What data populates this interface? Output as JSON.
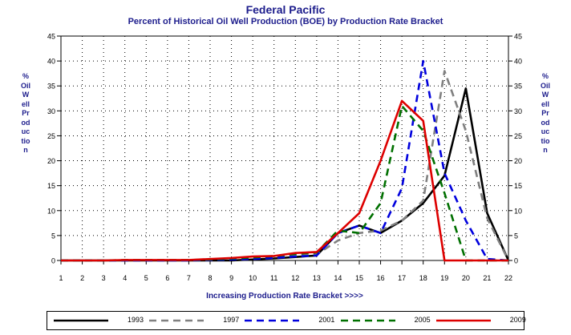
{
  "chart_data": {
    "type": "line",
    "title": "Federal Pacific",
    "subtitle": "Percent of Historical Oil Well Production (BOE) by Production Rate Bracket",
    "xlabel": "Increasing Production Rate Bracket >>>>",
    "ylabel": "% Oil Well Production",
    "x": [
      1,
      2,
      3,
      4,
      5,
      6,
      7,
      8,
      9,
      10,
      11,
      12,
      13,
      14,
      15,
      16,
      17,
      18,
      19,
      20,
      21,
      22
    ],
    "xlim": [
      1,
      22
    ],
    "ylim": [
      0,
      45
    ],
    "yticks": [
      0,
      5,
      10,
      15,
      20,
      25,
      30,
      35,
      40,
      45
    ],
    "grid": true,
    "legend_position": "bottom",
    "series": [
      {
        "name": "1993",
        "color": "#000000",
        "dash": "solid",
        "values": [
          0,
          0,
          0,
          0,
          0,
          0,
          0,
          0,
          0,
          0.2,
          0.4,
          0.7,
          1,
          5.5,
          7,
          5.5,
          8,
          11.5,
          17,
          34.5,
          9.5,
          0
        ]
      },
      {
        "name": "1997",
        "color": "#808080",
        "dash": "dashed",
        "values": [
          0,
          0,
          0,
          0,
          0,
          0,
          0,
          0.1,
          0.2,
          0.3,
          0.6,
          0.9,
          1.2,
          4,
          5.5,
          6,
          8,
          12,
          38,
          26,
          8.5,
          0
        ]
      },
      {
        "name": "2001",
        "color": "#0000dd",
        "dash": "dashed",
        "values": [
          0,
          0,
          0,
          0,
          0,
          0,
          0,
          0.1,
          0.2,
          0.3,
          0.5,
          0.8,
          1,
          5.5,
          7,
          5.5,
          14.5,
          40,
          17.5,
          8,
          0.3,
          0
        ]
      },
      {
        "name": "2005",
        "color": "#007000",
        "dash": "dashed",
        "values": [
          0,
          0,
          0,
          0.1,
          0.1,
          0.1,
          0.1,
          0.2,
          0.4,
          0.6,
          0.9,
          1.3,
          1.6,
          6,
          5.5,
          11.5,
          31,
          26,
          13.5,
          0,
          0,
          0
        ]
      },
      {
        "name": "2009",
        "color": "#dd0000",
        "dash": "solid",
        "values": [
          0,
          0,
          0,
          0.1,
          0.1,
          0.1,
          0.1,
          0.3,
          0.5,
          0.8,
          0.9,
          1.5,
          1.7,
          5.5,
          9.5,
          20,
          32,
          28,
          0,
          0,
          0,
          0
        ]
      }
    ]
  }
}
